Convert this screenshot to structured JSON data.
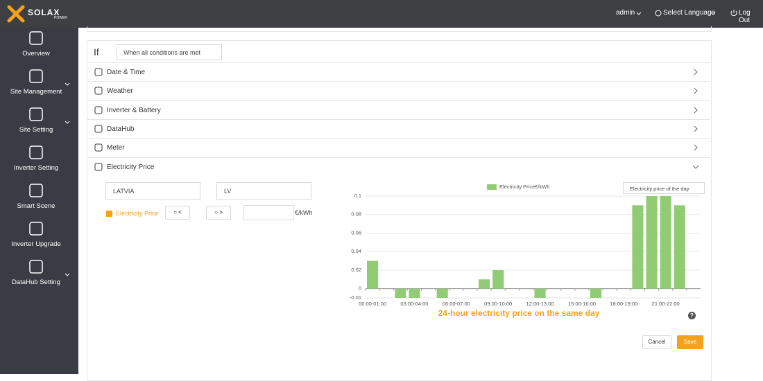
{
  "header": {
    "logo": "SOLAX",
    "logo_sub": "POWER",
    "user": "admin",
    "language": "Select Language",
    "logout": "Log Out"
  },
  "sidebar": {
    "items": [
      "Overview",
      "Site Management",
      "Site Setting",
      "Inverter Setting",
      "Smart Scene",
      "Inverter Upgrade",
      "DataHub Setting"
    ]
  },
  "condition": {
    "label": "If",
    "mode": "When all conditions are met",
    "rows": [
      "Date & Time",
      "Weather",
      "Inverter & Battery",
      "DataHub",
      "Meter",
      "Electricity Price"
    ]
  },
  "price_form": {
    "country": "LATVIA",
    "region": "LV",
    "checkbox_label": "Electricity Price",
    "less": "<",
    "greater": ">",
    "unit": "€/kWh"
  },
  "chart_data": {
    "type": "bar",
    "title": "24-hour electricity price on the same day",
    "period_selector": "Electricity price of the day",
    "categories": [
      "00:00-01:00",
      null,
      null,
      "03:00-04:00",
      null,
      null,
      "06:00-07:00",
      null,
      null,
      "09:00-10:00",
      null,
      null,
      "12:00-13:00",
      null,
      null,
      "15:00-16:00",
      null,
      null,
      "18:00-19:00",
      null,
      null,
      "21:00-22:00",
      null,
      null
    ],
    "series": [
      {
        "name": "Electricity Price€/kWh",
        "color": "#91cc75",
        "values": [
          0.03,
          0,
          -0.01,
          -0.01,
          0,
          -0.01,
          0,
          0,
          0.01,
          0.02,
          0,
          0,
          -0.01,
          0,
          0,
          0,
          -0.01,
          0,
          0,
          0.09,
          0.1,
          0.1,
          0.09,
          0
        ]
      }
    ],
    "ylim": [
      -0.01,
      0.1
    ],
    "yticks": [
      -0.01,
      0,
      0.02,
      0.04,
      0.06,
      0.08,
      0.1
    ],
    "grid": true
  },
  "help": "?",
  "actions": {
    "cancel": "Cancel",
    "save": "Save"
  }
}
